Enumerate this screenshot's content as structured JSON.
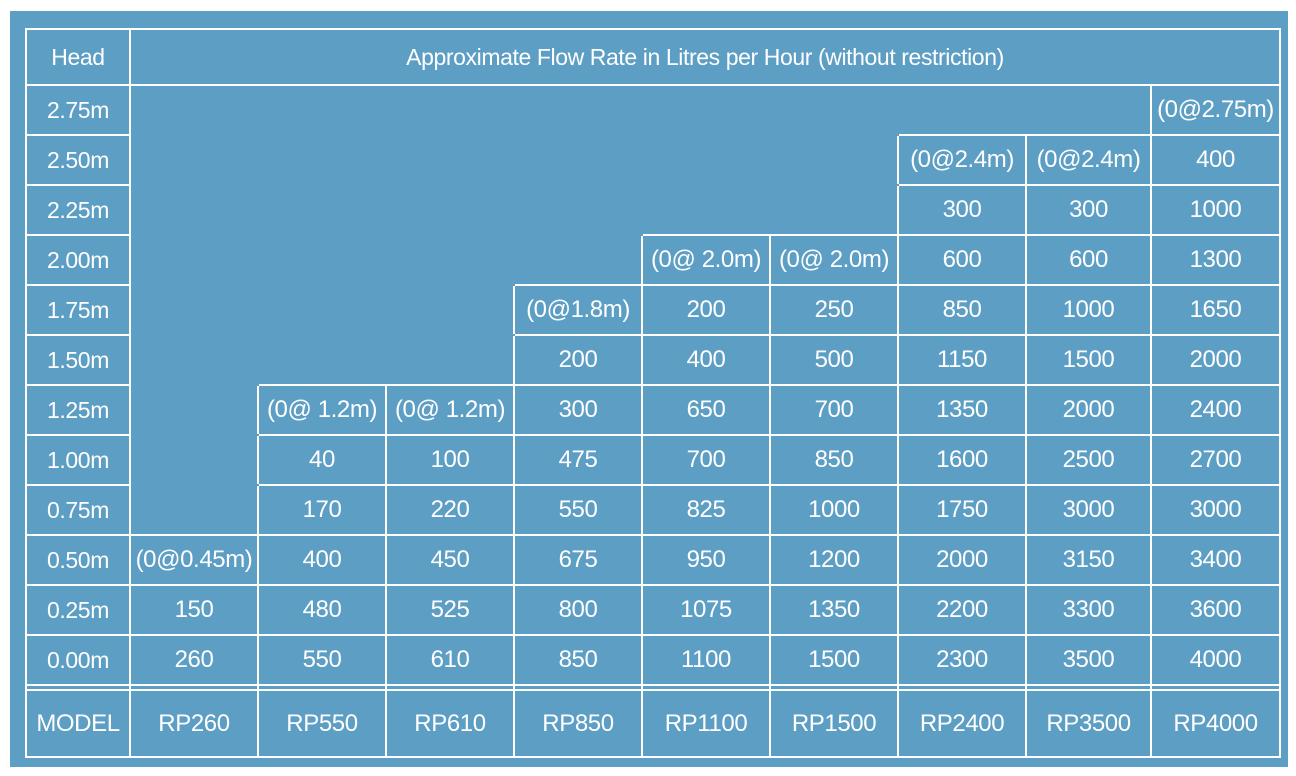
{
  "chart_data": {
    "type": "table",
    "head_label": "Head",
    "title": "Approximate Flow Rate in Litres per Hour (without restriction)",
    "model_label": "MODEL",
    "models": [
      "RP260",
      "RP550",
      "RP610",
      "RP850",
      "RP1100",
      "RP1500",
      "RP2400",
      "RP3500",
      "RP4000"
    ],
    "rows": [
      {
        "head": "2.75m",
        "values": [
          "",
          "",
          "",
          "",
          "",
          "",
          "",
          "",
          "(0@2.75m)"
        ]
      },
      {
        "head": "2.50m",
        "values": [
          "",
          "",
          "",
          "",
          "",
          "",
          "(0@2.4m)",
          "(0@2.4m)",
          "400"
        ]
      },
      {
        "head": "2.25m",
        "values": [
          "",
          "",
          "",
          "",
          "",
          "",
          "300",
          "300",
          "1000"
        ]
      },
      {
        "head": "2.00m",
        "values": [
          "",
          "",
          "",
          "",
          "(0@ 2.0m)",
          "(0@ 2.0m)",
          "600",
          "600",
          "1300"
        ]
      },
      {
        "head": "1.75m",
        "values": [
          "",
          "",
          "",
          "(0@1.8m)",
          "200",
          "250",
          "850",
          "1000",
          "1650"
        ]
      },
      {
        "head": "1.50m",
        "values": [
          "",
          "",
          "",
          "200",
          "400",
          "500",
          "1150",
          "1500",
          "2000"
        ]
      },
      {
        "head": "1.25m",
        "values": [
          "",
          "(0@ 1.2m)",
          "(0@ 1.2m)",
          "300",
          "650",
          "700",
          "1350",
          "2000",
          "2400"
        ]
      },
      {
        "head": "1.00m",
        "values": [
          "",
          "40",
          "100",
          "475",
          "700",
          "850",
          "1600",
          "2500",
          "2700"
        ]
      },
      {
        "head": "0.75m",
        "values": [
          "",
          "170",
          "220",
          "550",
          "825",
          "1000",
          "1750",
          "3000",
          "3000"
        ]
      },
      {
        "head": "0.50m",
        "values": [
          "(0@0.45m)",
          "400",
          "450",
          "675",
          "950",
          "1200",
          "2000",
          "3150",
          "3400"
        ]
      },
      {
        "head": "0.25m",
        "values": [
          "150",
          "480",
          "525",
          "800",
          "1075",
          "1350",
          "2200",
          "3300",
          "3600"
        ]
      },
      {
        "head": "0.00m",
        "values": [
          "260",
          "550",
          "610",
          "850",
          "1100",
          "1500",
          "2300",
          "3500",
          "4000"
        ]
      }
    ]
  }
}
